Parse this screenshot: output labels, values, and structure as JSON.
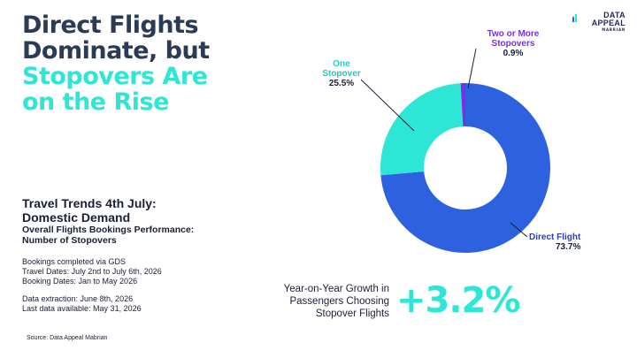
{
  "headline": {
    "line1": "Direct Flights",
    "line2": "Dominate, but",
    "line3": "Stopovers Are",
    "line4": "on the Rise"
  },
  "logo": {
    "line1": "DATA",
    "line2": "APPEAL",
    "line3": "MABRIAN"
  },
  "subtitle": {
    "line1": "Travel Trends 4th July:",
    "line2": "Domestic Demand",
    "line3": "Overall Flights Bookings Performance:",
    "line4": "Number of Stopovers"
  },
  "info": {
    "line1": "Bookings completed via GDS",
    "line2": "Travel Dates: July 2nd to July 6th, 2026",
    "line3": "Booking Dates: Jan to May 2026",
    "line4": "Data extraction: June 8th, 2026",
    "line5": "Last data available: May 31, 2026"
  },
  "source": "Source: Data Appeal Mabrian",
  "yoy": {
    "text": "Year-on-Year Growth in Passengers Choosing Stopover Flights",
    "value": "+3.2%"
  },
  "chart_data": {
    "type": "pie",
    "donut": true,
    "slices": [
      {
        "name": "Direct Flight",
        "name_lines": [
          "Direct Flight"
        ],
        "value": 73.7,
        "label": "73.7%",
        "color": "#2d61e0",
        "label_color": "#2d3fb8"
      },
      {
        "name": "One Stopover",
        "name_lines": [
          "One",
          "Stopover"
        ],
        "value": 25.5,
        "label": "25.5%",
        "color": "#2ee6d6",
        "label_color": "#25c9bd"
      },
      {
        "name": "Two or More Stopovers",
        "name_lines": [
          "Two or More",
          "Stopovers"
        ],
        "value": 0.9,
        "label": "0.9%",
        "color": "#7b2fe0",
        "label_color": "#7b2fe0"
      }
    ]
  }
}
